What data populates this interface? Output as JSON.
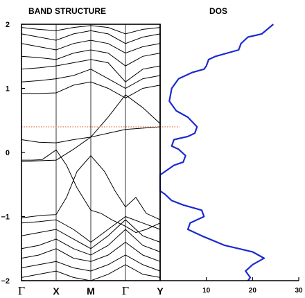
{
  "chart_data": [
    {
      "type": "line",
      "title": "BAND STRUCTURE",
      "ylim": [
        -2,
        2
      ],
      "y_ticks": [
        {
          "value": 2,
          "label": "2"
        },
        {
          "value": 1,
          "label": "1"
        },
        {
          "value": 0,
          "label": "0"
        },
        {
          "value": -1,
          "label": "−1"
        },
        {
          "value": -2,
          "label": "−2"
        }
      ],
      "k_points": [
        {
          "label": "Γ",
          "pos": 0
        },
        {
          "label": "X",
          "pos": 1
        },
        {
          "label": "M",
          "pos": 2
        },
        {
          "label": "Γ",
          "pos": 3
        },
        {
          "label": "Y",
          "pos": 4
        }
      ],
      "fermi_level": 0.4,
      "fermi_color": "#e07040",
      "line_color": "#000000",
      "bands": [
        {
          "k": [
            0,
            0.5,
            1,
            1.5,
            2,
            2.5,
            3,
            3.5,
            4
          ],
          "e": [
            -0.14,
            -0.13,
            -0.12,
            0.05,
            0.24,
            0.3,
            0.36,
            0.38,
            0.4
          ]
        },
        {
          "k": [
            0,
            0.5,
            1,
            1.5,
            2,
            2.5,
            3,
            3.5,
            4
          ],
          "e": [
            0.2,
            0.16,
            0.15,
            0.2,
            0.24,
            0.55,
            0.9,
            0.7,
            0.45
          ]
        },
        {
          "k": [
            0,
            0.3,
            0.6,
            1,
            1.3,
            1.6,
            2,
            2.4,
            2.7,
            3,
            3.3,
            3.6,
            4
          ],
          "e": [
            -1.02,
            -1.0,
            -0.98,
            -0.97,
            -0.7,
            -0.3,
            -0.05,
            -0.3,
            -0.6,
            -0.85,
            -0.7,
            -0.95,
            -1.05
          ]
        },
        {
          "k": [
            0,
            0.3,
            0.6,
            1,
            1.3,
            1.6,
            2,
            2.3,
            2.6,
            3,
            3.3,
            3.6,
            4
          ],
          "e": [
            -0.12,
            -0.12,
            -0.11,
            0.04,
            -0.2,
            -0.55,
            -0.9,
            -0.95,
            -1.05,
            -1.15,
            -1.25,
            -1.2,
            -1.1
          ]
        },
        {
          "k": [
            0,
            0.5,
            1,
            1.5,
            2,
            2.5,
            3,
            3.5,
            4
          ],
          "e": [
            -1.1,
            -1.08,
            -1.05,
            -1.2,
            -1.4,
            -1.2,
            -1.0,
            -1.1,
            -1.2
          ]
        },
        {
          "k": [
            0,
            0.5,
            1,
            1.5,
            2,
            2.5,
            3,
            3.5,
            4
          ],
          "e": [
            -1.3,
            -1.25,
            -1.2,
            -1.35,
            -1.5,
            -1.3,
            -1.05,
            -1.3,
            -1.4
          ]
        },
        {
          "k": [
            0,
            0.5,
            1,
            1.5,
            2,
            2.5,
            3,
            3.5,
            4
          ],
          "e": [
            -1.5,
            -1.45,
            -1.35,
            -1.5,
            -1.6,
            -1.45,
            -1.2,
            -1.45,
            -1.55
          ]
        },
        {
          "k": [
            0,
            0.5,
            1,
            1.5,
            2,
            2.5,
            3,
            3.5,
            4
          ],
          "e": [
            -1.65,
            -1.6,
            -1.5,
            -1.65,
            -1.7,
            -1.6,
            -1.4,
            -1.6,
            -1.7
          ]
        },
        {
          "k": [
            0,
            0.5,
            1,
            1.5,
            2,
            2.5,
            3,
            3.5,
            4
          ],
          "e": [
            -1.8,
            -1.75,
            -1.7,
            -1.8,
            -1.85,
            -1.75,
            -1.6,
            -1.75,
            -1.85
          ]
        },
        {
          "k": [
            0,
            0.5,
            1,
            1.5,
            2,
            2.5,
            3,
            3.5,
            4
          ],
          "e": [
            -1.95,
            -1.9,
            -1.85,
            -1.95,
            -2.0,
            -1.9,
            -1.75,
            -1.9,
            -1.95
          ]
        },
        {
          "k": [
            0,
            0.5,
            1,
            1.5,
            2,
            2.5,
            3,
            3.5,
            4
          ],
          "e": [
            0.92,
            0.92,
            0.93,
            1.05,
            1.1,
            1.0,
            0.85,
            1.0,
            1.05
          ]
        },
        {
          "k": [
            0,
            0.5,
            1,
            1.5,
            2,
            2.5,
            3,
            3.5,
            4
          ],
          "e": [
            1.1,
            1.12,
            1.15,
            1.2,
            1.3,
            1.15,
            1.0,
            1.15,
            1.2
          ]
        },
        {
          "k": [
            0,
            0.5,
            1,
            1.5,
            2,
            2.5,
            3,
            3.5,
            4
          ],
          "e": [
            1.3,
            1.32,
            1.35,
            1.4,
            1.45,
            1.4,
            1.1,
            1.3,
            1.35
          ]
        },
        {
          "k": [
            0,
            0.5,
            1,
            1.5,
            2,
            2.5,
            3,
            3.5,
            4
          ],
          "e": [
            1.5,
            1.48,
            1.45,
            1.55,
            1.6,
            1.55,
            1.35,
            1.5,
            1.55
          ]
        },
        {
          "k": [
            0,
            0.5,
            1,
            1.5,
            2,
            2.5,
            3,
            3.5,
            4
          ],
          "e": [
            1.7,
            1.65,
            1.6,
            1.7,
            1.75,
            1.7,
            1.55,
            1.65,
            1.7
          ]
        },
        {
          "k": [
            0,
            0.5,
            1,
            1.5,
            2,
            2.5,
            3,
            3.5,
            4
          ],
          "e": [
            1.85,
            1.8,
            1.75,
            1.85,
            1.9,
            1.85,
            1.7,
            1.8,
            1.85
          ]
        },
        {
          "k": [
            0,
            0.5,
            1,
            1.5,
            2,
            2.5,
            3,
            3.5,
            4
          ],
          "e": [
            1.95,
            1.92,
            1.9,
            1.95,
            1.98,
            1.95,
            1.85,
            1.92,
            1.95
          ]
        }
      ]
    },
    {
      "type": "line",
      "title": "DOS",
      "xlim": [
        0,
        30
      ],
      "ylim": [
        -2,
        2
      ],
      "x_ticks": [
        {
          "value": 10,
          "label": "10"
        },
        {
          "value": 20,
          "label": "20"
        },
        {
          "value": 30,
          "label": "30"
        }
      ],
      "line_color": "#1a2ad0",
      "series": [
        {
          "x": [
            24.5,
            22,
            19,
            17.5,
            17,
            12,
            10.5,
            10,
            9.5,
            7,
            4,
            2.5,
            2,
            3.5,
            6,
            8,
            7.5,
            6,
            3,
            2.5,
            4,
            5.5,
            5,
            3,
            0,
            0,
            0,
            0,
            1,
            2.5,
            5,
            9,
            9.5,
            6.5,
            6,
            9,
            14,
            20,
            22.5,
            20,
            18.5,
            19.5,
            19
          ],
          "y": [
            2.0,
            1.85,
            1.8,
            1.7,
            1.6,
            1.5,
            1.45,
            1.35,
            1.3,
            1.25,
            1.15,
            1.0,
            0.8,
            0.65,
            0.55,
            0.4,
            0.3,
            0.25,
            0.2,
            0.1,
            0.05,
            -0.05,
            -0.15,
            -0.2,
            -0.35,
            -0.5,
            -0.55,
            -0.6,
            -0.65,
            -0.75,
            -0.82,
            -0.9,
            -1.0,
            -1.1,
            -1.2,
            -1.3,
            -1.45,
            -1.55,
            -1.65,
            -1.75,
            -1.85,
            -1.95,
            -2.0
          ]
        }
      ]
    }
  ]
}
